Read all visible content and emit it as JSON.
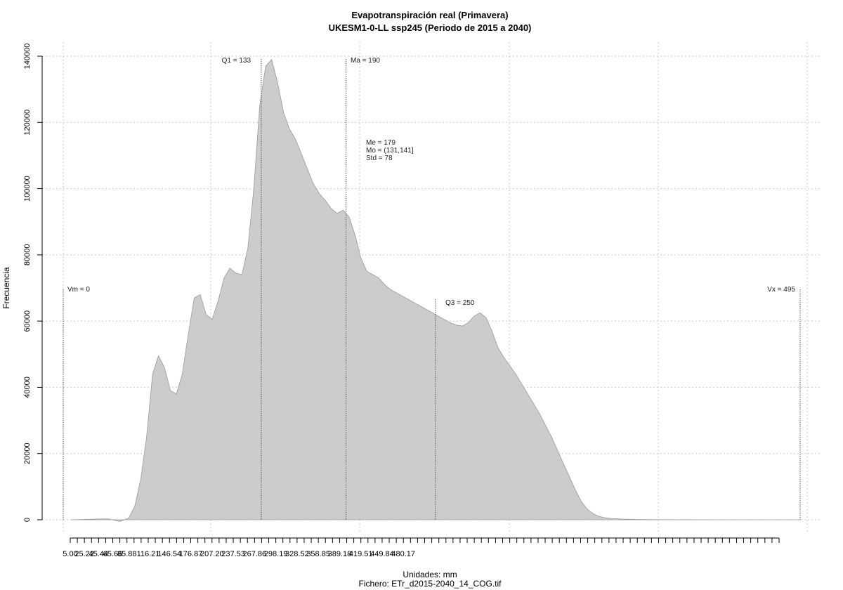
{
  "chart_data": {
    "type": "area",
    "title": "Evapotranspiración real (Primavera)",
    "subtitle": "UKESM1-0-LL ssp245 (Periodo de 2015 a 2040)",
    "xlabel": "Unidades: mm",
    "ylabel": "Frecuencia",
    "caption": "Fichero: ETr_d2015-2040_14_COG.tif",
    "xlim": [
      0,
      495
    ],
    "ylim": [
      0,
      140000
    ],
    "xticks": [
      "5.00",
      "25.22",
      "45.44",
      "65.66",
      "85.88",
      "116.21",
      "146.54",
      "176.87",
      "207.20",
      "237.53",
      "267.86",
      "298.19",
      "328.52",
      "358.85",
      "389.18",
      "419.51",
      "449.84",
      "480.17"
    ],
    "yticks": [
      "0",
      "20000",
      "40000",
      "60000",
      "80000",
      "100000",
      "120000",
      "140000"
    ],
    "grid": true,
    "fill_color": "#cccccc",
    "line_color": "#9a9a9a",
    "series": [
      {
        "x": [
          5,
          20,
          30,
          38,
          44,
          48,
          52,
          56,
          60,
          64,
          68,
          72,
          76,
          80,
          84,
          88,
          92,
          96,
          100,
          104,
          108,
          112,
          116,
          120,
          124,
          128,
          132,
          136,
          140,
          144,
          148,
          152,
          156,
          160,
          164,
          168,
          172,
          176,
          180,
          184,
          188,
          192,
          196,
          200,
          204,
          208,
          212,
          216,
          220,
          224,
          228,
          232,
          236,
          240,
          244,
          248,
          252,
          256,
          260,
          264,
          268,
          272,
          276,
          280,
          284,
          288,
          292,
          296,
          300,
          304,
          308,
          312,
          316,
          320,
          324,
          328,
          332,
          336,
          340,
          344,
          348,
          352,
          356,
          360,
          364,
          368,
          372,
          376,
          380,
          384,
          388,
          392,
          396,
          400,
          410,
          420,
          440,
          460,
          480,
          495
        ],
        "y": [
          0,
          200,
          300,
          -500,
          500,
          4000,
          12000,
          25000,
          44000,
          49500,
          46000,
          39000,
          38000,
          44000,
          56000,
          67000,
          68000,
          62000,
          60500,
          66000,
          73000,
          76000,
          74500,
          74000,
          82000,
          100000,
          125000,
          137000,
          139000,
          132000,
          123000,
          118000,
          115000,
          110500,
          106000,
          101500,
          98500,
          96500,
          94000,
          92500,
          93500,
          91500,
          86000,
          79000,
          75000,
          74000,
          73000,
          71000,
          69500,
          68500,
          67500,
          66500,
          65500,
          64500,
          63500,
          62500,
          61500,
          60500,
          59500,
          58800,
          58500,
          59500,
          61500,
          62500,
          61000,
          57000,
          52000,
          49000,
          46500,
          44000,
          41000,
          38000,
          35000,
          32000,
          28500,
          25000,
          21000,
          17000,
          13000,
          9000,
          5500,
          3200,
          1800,
          1000,
          600,
          400,
          300,
          200,
          150,
          100,
          80,
          60,
          50,
          40,
          30,
          20,
          10,
          5,
          2,
          0
        ]
      }
    ],
    "annotations": [
      {
        "label": "Vm = 0",
        "x": 0
      },
      {
        "label": "Q1 = 133",
        "x": 133
      },
      {
        "label": "Ma = 190",
        "x": 190
      },
      {
        "label": "Me = 179"
      },
      {
        "label": "Mo = (131,141]"
      },
      {
        "label": "Std = 78"
      },
      {
        "label": "Q3 = 250",
        "x": 250
      },
      {
        "label": "Vx = 495",
        "x": 495
      }
    ]
  }
}
